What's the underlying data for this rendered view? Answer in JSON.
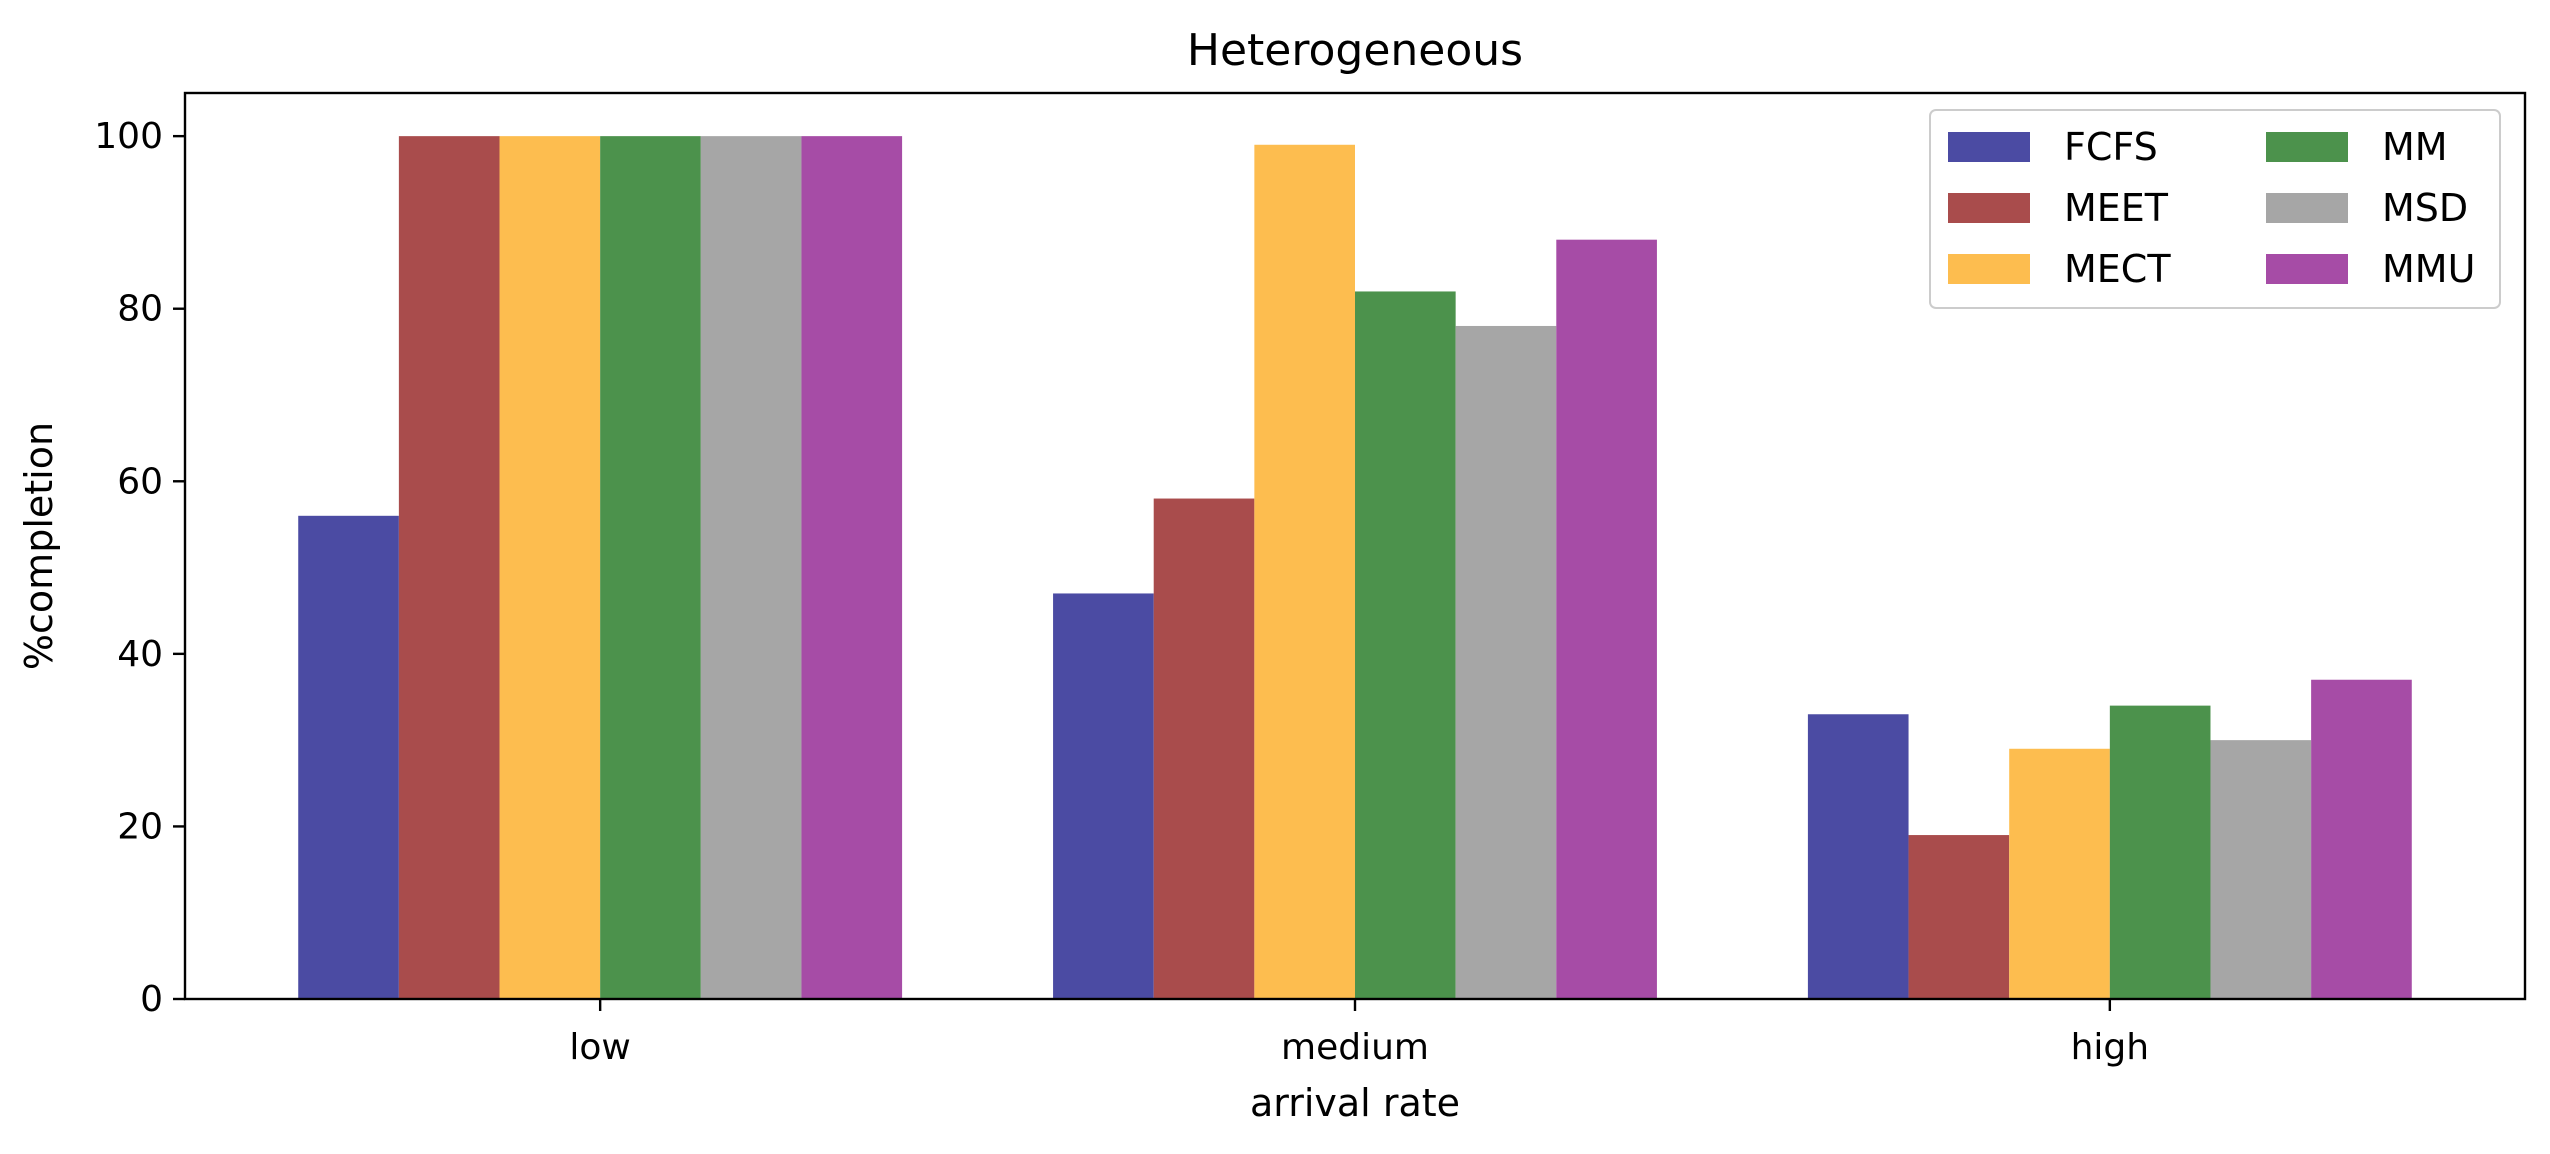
{
  "chart_data": {
    "type": "bar",
    "title": "Heterogeneous",
    "xlabel": "arrival rate",
    "ylabel": "%completion",
    "categories": [
      "low",
      "medium",
      "high"
    ],
    "ylim": [
      0,
      105
    ],
    "yticks": [
      0,
      20,
      40,
      60,
      80,
      100
    ],
    "grid": false,
    "legend_position": "top-right",
    "legend_columns": 2,
    "series": [
      {
        "name": "FCFS",
        "color": "#4b4ba3",
        "values": [
          56,
          47,
          33
        ]
      },
      {
        "name": "MEET",
        "color": "#a94c4c",
        "values": [
          100,
          58,
          19
        ]
      },
      {
        "name": "MECT",
        "color": "#fdbd4f",
        "values": [
          100,
          99,
          29
        ]
      },
      {
        "name": "MM",
        "color": "#4c924c",
        "values": [
          100,
          82,
          34
        ]
      },
      {
        "name": "MSD",
        "color": "#a6a6a6",
        "values": [
          100,
          78,
          30
        ]
      },
      {
        "name": "MMU",
        "color": "#a64ca6",
        "values": [
          100,
          88,
          37
        ]
      }
    ]
  }
}
